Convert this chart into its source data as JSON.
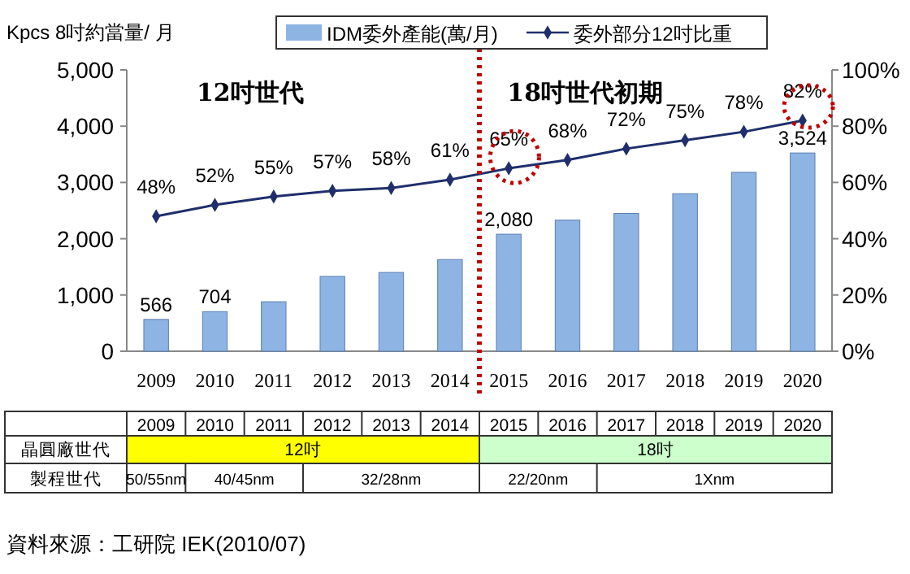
{
  "chart_data": {
    "type": "bar",
    "x": [
      2009,
      2010,
      2011,
      2012,
      2013,
      2014,
      2015,
      2016,
      2017,
      2018,
      2019,
      2020
    ],
    "xlim": [
      2008.5,
      2020.5
    ],
    "xticks": [
      2009,
      2010,
      2011,
      2012,
      2013,
      2014,
      2015,
      2016,
      2017,
      2018,
      2019,
      2020
    ],
    "ylabel": "Kpcs 8吋約當量/ 月",
    "ylim": [
      0,
      5000
    ],
    "yticks": [
      {
        "value": 0,
        "label": "0"
      },
      {
        "value": 1000,
        "label": "1,000"
      },
      {
        "value": 2000,
        "label": "2,000"
      },
      {
        "value": 3000,
        "label": "3,000"
      },
      {
        "value": 4000,
        "label": "4,000"
      },
      {
        "value": 5000,
        "label": "5,000"
      }
    ],
    "y2lim": [
      0,
      100
    ],
    "y2ticks": [
      {
        "value": 0,
        "label": "0%"
      },
      {
        "value": 20,
        "label": "20%"
      },
      {
        "value": 40,
        "label": "40%"
      },
      {
        "value": 60,
        "label": "60%"
      },
      {
        "value": 80,
        "label": "80%"
      },
      {
        "value": 100,
        "label": "100%"
      }
    ],
    "series": [
      {
        "name": "IDM委外產能(萬/月)",
        "color": "#8db4e2",
        "values": [
          566,
          704,
          880,
          1330,
          1400,
          1630,
          2080,
          2330,
          2450,
          2800,
          3180,
          3524
        ],
        "value_labels": [
          "566",
          "704",
          null,
          null,
          null,
          null,
          "2,080",
          null,
          null,
          null,
          null,
          "3,524"
        ]
      },
      {
        "name": "委外部分12吋比重",
        "type": "line",
        "axis": "y2",
        "color": "#1f2f6b",
        "values": [
          48,
          52,
          55,
          57,
          58,
          61,
          65,
          68,
          72,
          75,
          78,
          82
        ],
        "value_labels": [
          "48%",
          "52%",
          "55%",
          "57%",
          "58%",
          "61%",
          "65%",
          "68%",
          "72%",
          "75%",
          "78%",
          "82%"
        ]
      }
    ],
    "ref_lines": [
      {
        "axis": "x",
        "value": 2014.5,
        "color": "#c00000",
        "line_style": "dotted"
      }
    ],
    "legend": "top",
    "marker": "diamond",
    "grid": false,
    "annotations": [
      "12吋世代",
      "18吋世代初期",
      "晶圓廠世代",
      "製程世代",
      "12吋",
      "18吋",
      "50/55nm",
      "40/45nm",
      "32/28nm",
      "22/20nm",
      "1Xnm",
      "資料來源：工研院 IEK(2010/07)",
      "2009",
      "2010",
      "2011",
      "2012",
      "2013",
      "2014",
      "2015",
      "2016",
      "2017",
      "2018",
      "2019",
      "2020"
    ]
  }
}
